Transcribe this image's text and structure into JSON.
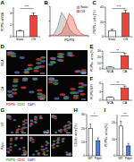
{
  "chart_data": [
    {
      "panel": "A",
      "type": "bar",
      "categories": [
        "Static",
        "OS"
      ],
      "values": [
        1,
        3.6
      ],
      "errors": [
        0.1,
        0.4
      ],
      "colors": [
        "#ffffff",
        "#e8463a"
      ],
      "y_label": "PDPN mRNA",
      "ylim": [
        0,
        5
      ],
      "yticks": [
        0,
        2,
        4
      ],
      "annotation": "***"
    },
    {
      "panel": "B",
      "type": "line",
      "x": [
        0,
        1,
        2,
        3,
        4,
        5,
        6,
        7,
        8,
        9,
        10
      ],
      "series": [
        {
          "name": "Static",
          "color": "#888888",
          "values": [
            0,
            5,
            30,
            80,
            60,
            25,
            8,
            2,
            0,
            0,
            0
          ]
        },
        {
          "name": "OS",
          "color": "#e8463a",
          "values": [
            0,
            0,
            2,
            10,
            35,
            75,
            60,
            25,
            8,
            2,
            0
          ]
        }
      ],
      "x_label": "PDPN",
      "xlim": [
        0,
        10
      ],
      "ylim": [
        0,
        100
      ],
      "xticks": [
        0,
        5,
        10
      ],
      "yticks": [
        0,
        50,
        100
      ],
      "tick_labels": false
    },
    {
      "panel": "C",
      "type": "bar",
      "categories": [
        "Static",
        "OS"
      ],
      "values": [
        8,
        32
      ],
      "errors": [
        2,
        4
      ],
      "colors": [
        "#ffffff",
        "#e8463a"
      ],
      "y_label": "PDPN+ cells (%)",
      "ylim": [
        0,
        40
      ],
      "yticks": [
        0,
        20,
        40
      ],
      "annotation": "***"
    },
    {
      "panel": "E",
      "type": "bar",
      "categories": [
        "NCA",
        "CA"
      ],
      "values": [
        3,
        22
      ],
      "errors": [
        1,
        4
      ],
      "colors": [
        "#ffffff",
        "#e8463a"
      ],
      "y_label": "PDPN+ area (%)",
      "ylim": [
        0,
        30
      ],
      "yticks": [
        0,
        10,
        20,
        30
      ],
      "annotation": "**"
    },
    {
      "panel": "F",
      "type": "bar",
      "categories": [
        "NCA",
        "CA"
      ],
      "values": [
        1,
        4.2
      ],
      "errors": [
        0.2,
        0.8
      ],
      "colors": [
        "#ffffff",
        "#e8463a"
      ],
      "y_label": "PDPN MFI",
      "ylim": [
        0,
        6
      ],
      "yticks": [
        0,
        3,
        6
      ],
      "annotation": "**"
    },
    {
      "panel": "H",
      "type": "bar",
      "categories": [
        "WT",
        "Pdpn"
      ],
      "values": [
        20,
        11
      ],
      "errors": [
        3,
        2
      ],
      "colors": [
        "#ffffff",
        "#4a7fd4"
      ],
      "y_label": "CD31+ area (%)",
      "ylim": [
        0,
        30
      ],
      "yticks": [
        0,
        10,
        20,
        30
      ],
      "annotation": "*"
    },
    {
      "panel": "I",
      "type": "bar",
      "categories": [
        "WT",
        "Pdpn"
      ],
      "values": [
        18,
        6
      ],
      "errors": [
        3,
        1.5
      ],
      "colors": [
        "#ffffff",
        "#4a7fd4"
      ],
      "y_label": "PDPN+ area (%)",
      "ylim": [
        0,
        25
      ],
      "yticks": [
        0,
        10,
        20
      ],
      "annotation": "**"
    }
  ],
  "images": [
    {
      "panel": "D",
      "rows": [
        "NCA",
        "CA"
      ],
      "columns": 2,
      "channels": [
        {
          "name": "PDPN",
          "color": "#e53935"
        },
        {
          "name": "CD31",
          "color": "#43a047"
        },
        {
          "name": "DAPI",
          "color": "#5c6bc0"
        }
      ]
    },
    {
      "panel": "G",
      "rows": [
        "WT",
        "Pdpn"
      ],
      "columns": 3,
      "channels": [
        {
          "name": "PDPN",
          "color": "#43a047"
        },
        {
          "name": "CD31",
          "color": "#e53935"
        },
        {
          "name": "DAPI",
          "color": "#5c6bc0"
        }
      ]
    }
  ]
}
